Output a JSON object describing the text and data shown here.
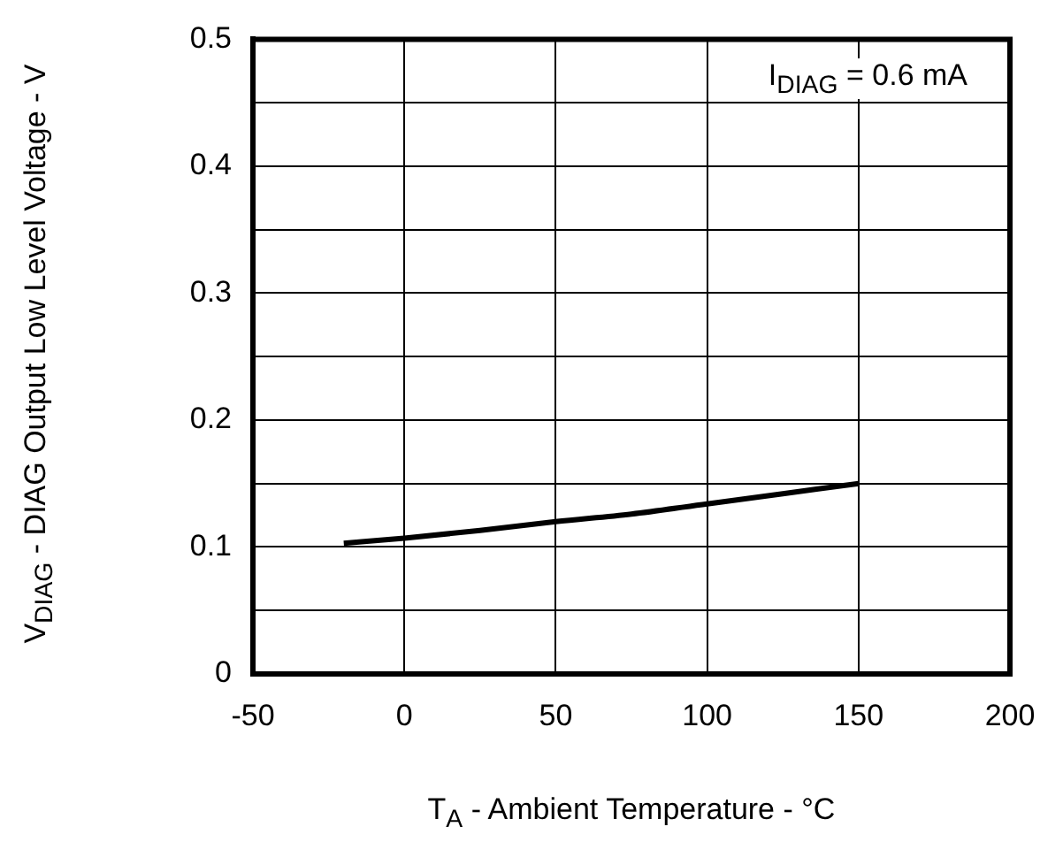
{
  "chart_data": {
    "type": "line",
    "xlabel": "T$_{A}$ - Ambient Temperature - °C",
    "ylabel": "V$_{DIAG}$ - DIAG Output Low Level Voltage - V",
    "annotations": [
      "I$_{DIAG}$ = 0.6 mA"
    ],
    "x": [
      -20,
      0,
      25,
      50,
      75,
      100,
      125,
      150
    ],
    "series": [
      {
        "color": "#000000",
        "values": [
          0.103,
          0.107,
          0.113,
          0.12,
          0.126,
          0.134,
          0.142,
          0.15
        ]
      }
    ],
    "xlim": [
      -50,
      200
    ],
    "xticks": [
      -50,
      0,
      50,
      100,
      150,
      200
    ],
    "ylim": [
      0,
      0.5
    ],
    "yticks": [
      0,
      {
        "value": 0.05,
        "label": null
      },
      0.1,
      {
        "value": 0.15,
        "label": null
      },
      0.2,
      {
        "value": 0.25,
        "label": null
      },
      0.3,
      {
        "value": 0.35,
        "label": null
      },
      0.4,
      {
        "value": 0.45,
        "label": null
      },
      0.5
    ],
    "grid": true
  }
}
